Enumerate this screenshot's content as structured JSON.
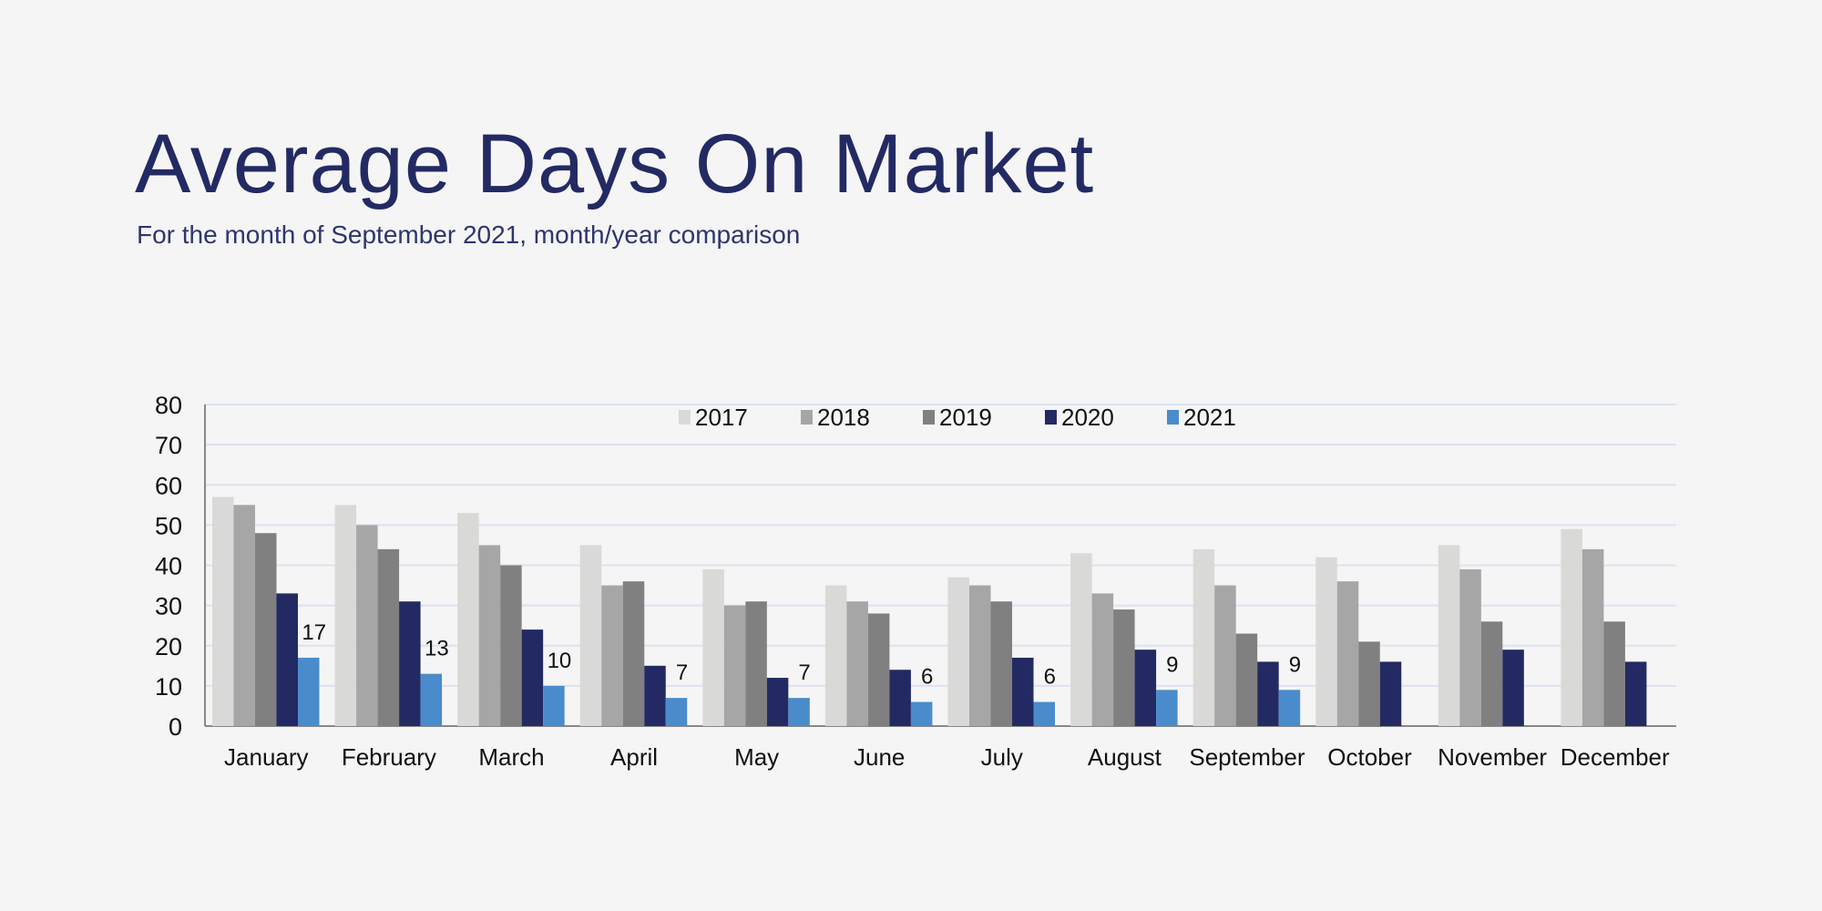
{
  "header": {
    "title": "Average Days On Market",
    "subtitle": "For the month of September 2021, month/year comparison"
  },
  "chart_data": {
    "type": "bar",
    "title": "Average Days On Market",
    "subtitle": "For the month of September 2021, month/year comparison",
    "xlabel": "",
    "ylabel": "",
    "ylim": [
      0,
      80
    ],
    "yticks": [
      0,
      10,
      20,
      30,
      40,
      50,
      60,
      70,
      80
    ],
    "grid": true,
    "legend_position": "top-center",
    "categories": [
      "January",
      "February",
      "March",
      "April",
      "May",
      "June",
      "July",
      "August",
      "September",
      "October",
      "November",
      "December"
    ],
    "series": [
      {
        "name": "2017",
        "color": "#d9d9d7",
        "values": [
          57,
          55,
          53,
          45,
          39,
          35,
          37,
          43,
          44,
          42,
          45,
          49
        ]
      },
      {
        "name": "2018",
        "color": "#a6a6a6",
        "values": [
          55,
          50,
          45,
          35,
          30,
          31,
          35,
          33,
          35,
          36,
          39,
          44
        ]
      },
      {
        "name": "2019",
        "color": "#808080",
        "values": [
          48,
          44,
          40,
          36,
          31,
          28,
          31,
          29,
          23,
          21,
          26,
          26
        ]
      },
      {
        "name": "2020",
        "color": "#232a63",
        "values": [
          33,
          31,
          24,
          15,
          12,
          14,
          17,
          19,
          16,
          16,
          19,
          16
        ]
      },
      {
        "name": "2021",
        "color": "#4a8ccb",
        "values": [
          17,
          13,
          10,
          7,
          7,
          6,
          6,
          9,
          9,
          null,
          null,
          null
        ],
        "data_labels": true
      }
    ]
  }
}
